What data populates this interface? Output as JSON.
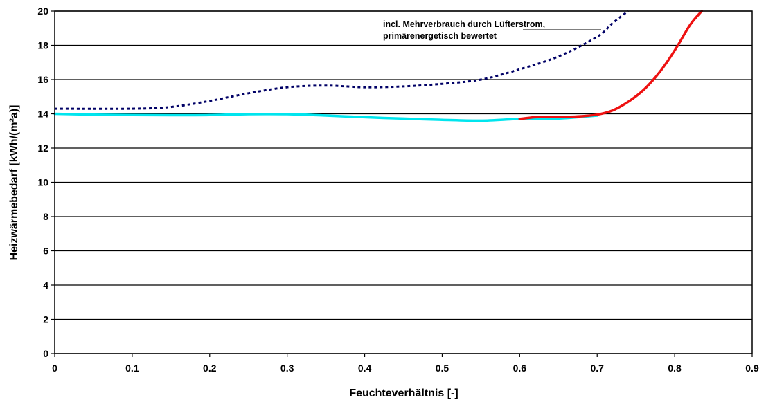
{
  "chart_data": {
    "type": "line",
    "title": "",
    "xlabel": "Feuchteverhältnis [-]",
    "ylabel": "Heizwärmebedarf [kWh/(m²a)]",
    "xlim": [
      0,
      0.9
    ],
    "ylim": [
      0,
      20
    ],
    "grid": true,
    "x_ticks": [
      0,
      0.1,
      0.2,
      0.3,
      0.4,
      0.5,
      0.6,
      0.7,
      0.8,
      0.9
    ],
    "x_tick_labels": [
      "0",
      "0.1",
      "0.2",
      "0.3",
      "0.4",
      "0.5",
      "0.6",
      "0.7",
      "0.8",
      "0.9"
    ],
    "y_ticks": [
      0,
      2,
      4,
      6,
      8,
      10,
      12,
      14,
      16,
      18,
      20
    ],
    "y_tick_labels": [
      "0",
      "2",
      "4",
      "6",
      "8",
      "10",
      "12",
      "14",
      "16",
      "18",
      "20"
    ],
    "annotation": {
      "lines": [
        "incl. Mehrverbrauch durch Lüfterstrom,",
        "primärenergetisch bewertet"
      ],
      "points_to_series": 2
    },
    "series": [
      {
        "color": "#00e5ee",
        "style": "solid",
        "points": [
          [
            0,
            14.0
          ],
          [
            0.05,
            13.95
          ],
          [
            0.1,
            13.93
          ],
          [
            0.15,
            13.92
          ],
          [
            0.2,
            13.93
          ],
          [
            0.25,
            13.98
          ],
          [
            0.3,
            13.98
          ],
          [
            0.35,
            13.9
          ],
          [
            0.4,
            13.8
          ],
          [
            0.45,
            13.72
          ],
          [
            0.5,
            13.65
          ],
          [
            0.55,
            13.6
          ],
          [
            0.6,
            13.7
          ],
          [
            0.65,
            13.72
          ],
          [
            0.7,
            13.9
          ]
        ]
      },
      {
        "color": "#ee1111",
        "style": "solid",
        "points": [
          [
            0.6,
            13.7
          ],
          [
            0.62,
            13.8
          ],
          [
            0.64,
            13.83
          ],
          [
            0.66,
            13.82
          ],
          [
            0.68,
            13.86
          ],
          [
            0.7,
            13.95
          ],
          [
            0.72,
            14.2
          ],
          [
            0.74,
            14.7
          ],
          [
            0.76,
            15.4
          ],
          [
            0.78,
            16.4
          ],
          [
            0.8,
            17.7
          ],
          [
            0.82,
            19.2
          ],
          [
            0.835,
            20.0
          ]
        ]
      },
      {
        "color": "#000066",
        "style": "dotted",
        "points": [
          [
            0,
            14.3
          ],
          [
            0.1,
            14.3
          ],
          [
            0.15,
            14.4
          ],
          [
            0.2,
            14.75
          ],
          [
            0.25,
            15.2
          ],
          [
            0.3,
            15.55
          ],
          [
            0.35,
            15.65
          ],
          [
            0.4,
            15.55
          ],
          [
            0.45,
            15.6
          ],
          [
            0.5,
            15.75
          ],
          [
            0.55,
            16.0
          ],
          [
            0.6,
            16.6
          ],
          [
            0.65,
            17.35
          ],
          [
            0.7,
            18.5
          ],
          [
            0.72,
            19.3
          ],
          [
            0.74,
            20.0
          ]
        ]
      }
    ]
  }
}
